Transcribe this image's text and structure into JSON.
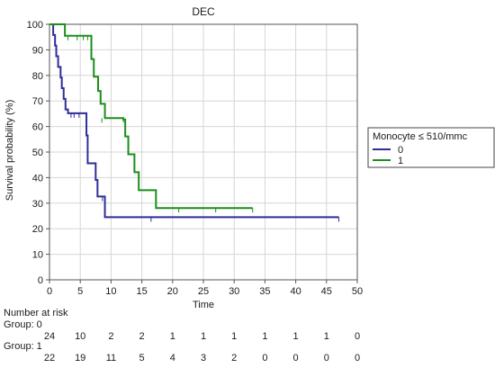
{
  "chart_data": {
    "type": "line",
    "subtype": "kaplan-meier",
    "title": "DEC",
    "xlabel": "Time",
    "ylabel": "Survival probability (%)",
    "xlim": [
      0,
      50
    ],
    "ylim": [
      0,
      100
    ],
    "xticks": [
      "0",
      "5",
      "10",
      "15",
      "20",
      "25",
      "30",
      "35",
      "40",
      "45",
      "50"
    ],
    "yticks": [
      "0",
      "10",
      "20",
      "30",
      "40",
      "50",
      "60",
      "70",
      "80",
      "90",
      "100"
    ],
    "grid": true,
    "legend": {
      "title": "Monocyte  ≤ 510/mmc",
      "placement": "right"
    },
    "series": [
      {
        "name": "0",
        "color": "#2e2e9a",
        "steps": [
          [
            0,
            100
          ],
          [
            0.6,
            95.8
          ],
          [
            0.9,
            91.7
          ],
          [
            1.1,
            87.5
          ],
          [
            1.4,
            83.3
          ],
          [
            1.8,
            79.2
          ],
          [
            2.0,
            75.0
          ],
          [
            2.3,
            70.8
          ],
          [
            2.6,
            66.7
          ],
          [
            3.0,
            65.2
          ],
          [
            6.0,
            56.5
          ],
          [
            6.2,
            45.6
          ],
          [
            7.5,
            39.1
          ],
          [
            7.8,
            32.6
          ],
          [
            9.0,
            24.5
          ],
          [
            47,
            24.5
          ]
        ],
        "censored": [
          [
            3.5,
            65.2
          ],
          [
            4.0,
            65.2
          ],
          [
            4.8,
            65.2
          ],
          [
            8.6,
            32.6
          ],
          [
            16.5,
            24.5
          ],
          [
            47,
            24.5
          ]
        ]
      },
      {
        "name": "1",
        "color": "#1a8f1a",
        "steps": [
          [
            0,
            100
          ],
          [
            2.5,
            95.5
          ],
          [
            6.8,
            86.4
          ],
          [
            7.2,
            79.5
          ],
          [
            7.9,
            73.9
          ],
          [
            8.3,
            68.9
          ],
          [
            9.0,
            63.3
          ],
          [
            12.0,
            62.7
          ],
          [
            12.3,
            56.1
          ],
          [
            12.8,
            49.1
          ],
          [
            13.8,
            42.1
          ],
          [
            14.5,
            35.1
          ],
          [
            17.3,
            28.1
          ],
          [
            33,
            28.1
          ]
        ],
        "censored": [
          [
            3.0,
            95.5
          ],
          [
            4.5,
            95.5
          ],
          [
            5.5,
            95.5
          ],
          [
            6.2,
            95.5
          ],
          [
            8.5,
            63.3
          ],
          [
            12.0,
            63.3
          ],
          [
            21,
            28.1
          ],
          [
            27,
            28.1
          ],
          [
            33,
            28.1
          ]
        ]
      }
    ],
    "risk_table": {
      "heading": "Number at risk",
      "groups": [
        {
          "label": "Group: 0",
          "counts": [
            "24",
            "10",
            "2",
            "2",
            "1",
            "1",
            "1",
            "1",
            "1",
            "1",
            "0"
          ]
        },
        {
          "label": "Group: 1",
          "counts": [
            "22",
            "19",
            "11",
            "5",
            "4",
            "3",
            "2",
            "0",
            "0",
            "0",
            "0"
          ]
        }
      ]
    }
  }
}
